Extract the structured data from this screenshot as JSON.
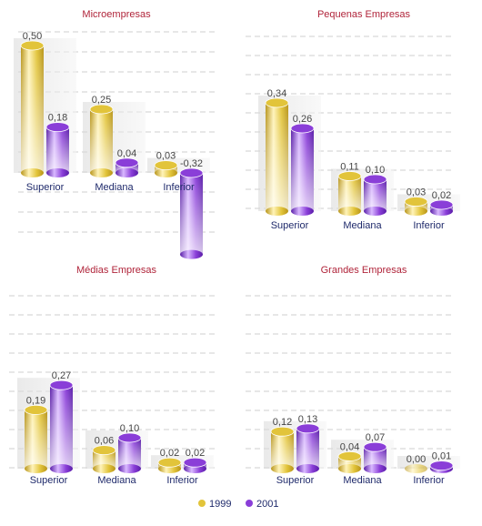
{
  "colors": {
    "1999": "#e2c43a",
    "2001": "#8a3ed8",
    "title": "#b0243a",
    "category": "#1f2a6b",
    "grid": "#cfcfcf"
  },
  "legend": [
    {
      "name": "1999",
      "color_key": "1999"
    },
    {
      "name": "2001",
      "color_key": "2001"
    }
  ],
  "chart_data": [
    {
      "type": "bar",
      "title": "Microempresas",
      "categories": [
        "Superior",
        "Mediana",
        "Inferior"
      ],
      "series": [
        {
          "name": "1999",
          "values": [
            0.5,
            0.25,
            0.03
          ],
          "labels": [
            "0,50",
            "0,25",
            "0,03"
          ]
        },
        {
          "name": "2001",
          "values": [
            0.18,
            0.04,
            -0.32
          ],
          "labels": [
            "0,18",
            "0,04",
            "-0,32"
          ]
        }
      ],
      "ylim": [
        -0.4,
        0.6
      ],
      "grid": true
    },
    {
      "type": "bar",
      "title": "Pequenas Empresas",
      "categories": [
        "Superior",
        "Mediana",
        "Inferior"
      ],
      "series": [
        {
          "name": "1999",
          "values": [
            0.34,
            0.11,
            0.03
          ],
          "labels": [
            "0,34",
            "0,11",
            "0,03"
          ]
        },
        {
          "name": "2001",
          "values": [
            0.26,
            0.1,
            0.02
          ],
          "labels": [
            "0,26",
            "0,10",
            "0,02"
          ]
        }
      ],
      "ylim": [
        0,
        0.45
      ],
      "grid": true
    },
    {
      "type": "bar",
      "title": "Médias Empresas",
      "categories": [
        "Superior",
        "Mediana",
        "Inferior"
      ],
      "series": [
        {
          "name": "1999",
          "values": [
            0.19,
            0.06,
            0.02
          ],
          "labels": [
            "0,19",
            "0,06",
            "0,02"
          ]
        },
        {
          "name": "2001",
          "values": [
            0.27,
            0.1,
            0.02
          ],
          "labels": [
            "0,27",
            "0,10",
            "0,02"
          ]
        }
      ],
      "ylim": [
        0,
        0.45
      ],
      "grid": true
    },
    {
      "type": "bar",
      "title": "Grandes Empresas",
      "categories": [
        "Superior",
        "Mediana",
        "Inferior"
      ],
      "series": [
        {
          "name": "1999",
          "values": [
            0.12,
            0.04,
            0.0
          ],
          "labels": [
            "0,12",
            "0,04",
            "0,00"
          ]
        },
        {
          "name": "2001",
          "values": [
            0.13,
            0.07,
            0.01
          ],
          "labels": [
            "0,13",
            "0,07",
            "0,01"
          ]
        }
      ],
      "ylim": [
        0,
        0.45
      ],
      "grid": true
    }
  ]
}
